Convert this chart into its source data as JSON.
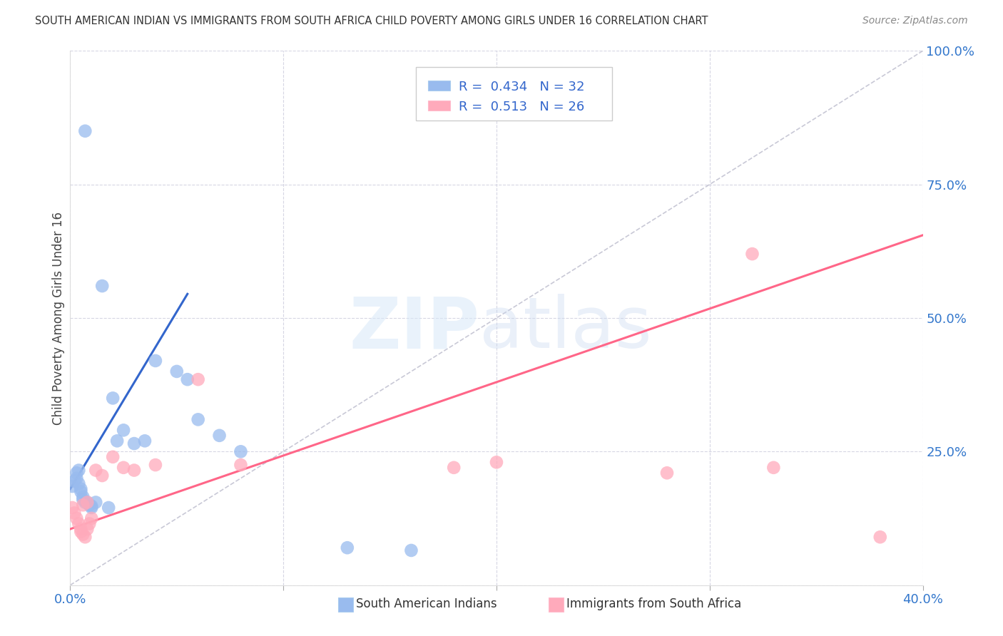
{
  "title": "SOUTH AMERICAN INDIAN VS IMMIGRANTS FROM SOUTH AFRICA CHILD POVERTY AMONG GIRLS UNDER 16 CORRELATION CHART",
  "source": "Source: ZipAtlas.com",
  "ylabel": "Child Poverty Among Girls Under 16",
  "xlim": [
    0.0,
    0.4
  ],
  "ylim": [
    0.0,
    1.0
  ],
  "xtick_positions": [
    0.0,
    0.1,
    0.2,
    0.3,
    0.4
  ],
  "xtick_labels": [
    "0.0%",
    "",
    "",
    "",
    "40.0%"
  ],
  "ytick_positions": [
    0.0,
    0.25,
    0.5,
    0.75,
    1.0
  ],
  "ytick_labels_right": [
    "",
    "25.0%",
    "50.0%",
    "75.0%",
    "100.0%"
  ],
  "blue_R": 0.434,
  "blue_N": 32,
  "pink_R": 0.513,
  "pink_N": 26,
  "blue_color": "#99BBEE",
  "pink_color": "#FFAABB",
  "blue_line_color": "#3366CC",
  "pink_line_color": "#FF6688",
  "diagonal_color": "#BBBBCC",
  "legend_label_blue": "South American Indians",
  "legend_label_pink": "Immigrants from South Africa",
  "blue_x": [
    0.001,
    0.002,
    0.003,
    0.003,
    0.004,
    0.004,
    0.005,
    0.005,
    0.006,
    0.006,
    0.007,
    0.007,
    0.008,
    0.009,
    0.01,
    0.01,
    0.012,
    0.015,
    0.018,
    0.02,
    0.022,
    0.025,
    0.03,
    0.035,
    0.04,
    0.05,
    0.055,
    0.06,
    0.07,
    0.08,
    0.13,
    0.16
  ],
  "blue_y": [
    0.185,
    0.195,
    0.2,
    0.21,
    0.19,
    0.215,
    0.18,
    0.175,
    0.165,
    0.16,
    0.155,
    0.85,
    0.155,
    0.15,
    0.145,
    0.148,
    0.155,
    0.56,
    0.145,
    0.35,
    0.27,
    0.29,
    0.265,
    0.27,
    0.42,
    0.4,
    0.385,
    0.31,
    0.28,
    0.25,
    0.07,
    0.065
  ],
  "pink_x": [
    0.001,
    0.002,
    0.003,
    0.004,
    0.005,
    0.005,
    0.006,
    0.006,
    0.007,
    0.008,
    0.008,
    0.009,
    0.01,
    0.012,
    0.015,
    0.02,
    0.025,
    0.03,
    0.04,
    0.06,
    0.08,
    0.18,
    0.2,
    0.28,
    0.33,
    0.38
  ],
  "pink_y": [
    0.145,
    0.135,
    0.125,
    0.115,
    0.105,
    0.1,
    0.095,
    0.15,
    0.09,
    0.105,
    0.155,
    0.115,
    0.125,
    0.215,
    0.205,
    0.24,
    0.22,
    0.215,
    0.225,
    0.385,
    0.225,
    0.22,
    0.23,
    0.21,
    0.22,
    0.09
  ],
  "blue_line_x": [
    0.0,
    0.055
  ],
  "blue_line_y": [
    0.18,
    0.545
  ],
  "pink_line_x": [
    0.0,
    0.4
  ],
  "pink_line_y": [
    0.105,
    0.655
  ]
}
